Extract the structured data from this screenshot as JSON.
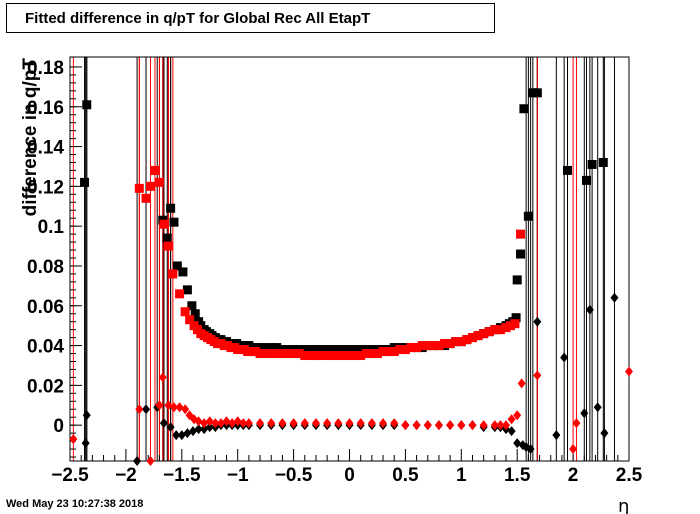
{
  "title": "Fitted difference in q/pT for Global Rec All EtapT",
  "timestamp": "Wed May 23 10:27:38 2018",
  "chart_data": {
    "type": "scatter",
    "title": "Fitted difference in q/pT for Global Rec All EtapT",
    "xlabel": "η",
    "ylabel": "difference in q/pT",
    "xlim": [
      -2.5,
      2.5
    ],
    "ylim": [
      -0.018,
      0.185
    ],
    "x_ticks": [
      "−2.5",
      "−2",
      "−1.5",
      "−1",
      "−0.5",
      "0",
      "0.5",
      "1",
      "1.5",
      "2",
      "2.5"
    ],
    "y_ticks": [
      "0",
      "0.02",
      "0.04",
      "0.06",
      "0.08",
      "0.1",
      "0.12",
      "0.14",
      "0.16",
      "0.18"
    ],
    "y_tick_values": [
      0,
      0.02,
      0.04,
      0.06,
      0.08,
      0.1,
      0.12,
      0.14,
      0.16,
      0.18
    ],
    "grid": false,
    "legend": "none",
    "series": [
      {
        "marker": "square",
        "color": "#000000",
        "x": [
          -2.37,
          -2.35,
          -1.67,
          -1.63,
          -1.6,
          -1.57,
          -1.54,
          -1.49,
          -1.45,
          -1.41,
          -1.38,
          -1.35,
          -1.33,
          -1.3,
          -1.28,
          -1.25,
          -1.23,
          -1.2,
          -1.17,
          -1.15,
          -1.12,
          -1.1,
          -1.07,
          -1.04,
          -1.01,
          -0.99,
          -0.96,
          -0.93,
          -0.9,
          -0.85,
          -0.8,
          -0.75,
          -0.7,
          -0.65,
          -0.6,
          -0.55,
          -0.5,
          -0.45,
          -0.4,
          -0.35,
          -0.3,
          -0.25,
          -0.2,
          -0.15,
          -0.1,
          -0.05,
          0,
          0.05,
          0.1,
          0.15,
          0.2,
          0.25,
          0.3,
          0.35,
          0.4,
          0.45,
          0.5,
          0.55,
          0.6,
          0.65,
          0.7,
          0.75,
          0.8,
          0.85,
          0.9,
          0.95,
          1.0,
          1.05,
          1.1,
          1.15,
          1.2,
          1.25,
          1.3,
          1.35,
          1.4,
          1.43,
          1.46,
          1.49,
          1.5,
          1.53,
          1.56,
          1.6,
          1.64,
          1.68,
          1.95,
          2.12,
          2.17,
          2.27
        ],
        "y": [
          0.122,
          0.161,
          0.103,
          0.094,
          0.109,
          0.102,
          0.08,
          0.077,
          0.068,
          0.06,
          0.056,
          0.052,
          0.05,
          0.048,
          0.047,
          0.046,
          0.045,
          0.044,
          0.043,
          0.043,
          0.042,
          0.042,
          0.041,
          0.041,
          0.041,
          0.04,
          0.04,
          0.04,
          0.04,
          0.039,
          0.039,
          0.039,
          0.039,
          0.039,
          0.038,
          0.038,
          0.038,
          0.038,
          0.038,
          0.038,
          0.038,
          0.038,
          0.038,
          0.038,
          0.038,
          0.038,
          0.038,
          0.038,
          0.038,
          0.038,
          0.038,
          0.038,
          0.038,
          0.038,
          0.039,
          0.039,
          0.039,
          0.039,
          0.039,
          0.039,
          0.04,
          0.04,
          0.04,
          0.04,
          0.041,
          0.042,
          0.042,
          0.043,
          0.044,
          0.045,
          0.046,
          0.047,
          0.048,
          0.049,
          0.05,
          0.051,
          0.052,
          0.054,
          0.073,
          0.086,
          0.159,
          0.105,
          0.167,
          0.167,
          0.128,
          0.123,
          0.131,
          0.132
        ]
      },
      {
        "marker": "square",
        "color": "#ff0000",
        "x": [
          -1.88,
          -1.82,
          -1.78,
          -1.74,
          -1.7,
          -1.66,
          -1.62,
          -1.58,
          -1.52,
          -1.47,
          -1.43,
          -1.39,
          -1.36,
          -1.33,
          -1.3,
          -1.27,
          -1.24,
          -1.21,
          -1.18,
          -1.15,
          -1.12,
          -1.09,
          -1.06,
          -1.03,
          -1.0,
          -0.97,
          -0.94,
          -0.91,
          -0.88,
          -0.84,
          -0.8,
          -0.75,
          -0.7,
          -0.65,
          -0.6,
          -0.55,
          -0.5,
          -0.45,
          -0.4,
          -0.35,
          -0.3,
          -0.25,
          -0.2,
          -0.15,
          -0.1,
          -0.05,
          0,
          0.05,
          0.1,
          0.15,
          0.2,
          0.25,
          0.3,
          0.35,
          0.4,
          0.45,
          0.5,
          0.55,
          0.6,
          0.65,
          0.7,
          0.75,
          0.8,
          0.85,
          0.9,
          0.95,
          1.0,
          1.05,
          1.1,
          1.15,
          1.2,
          1.25,
          1.3,
          1.35,
          1.4,
          1.44,
          1.48,
          1.53
        ],
        "y": [
          0.119,
          0.114,
          0.12,
          0.128,
          0.122,
          0.101,
          0.09,
          0.076,
          0.066,
          0.057,
          0.053,
          0.05,
          0.048,
          0.046,
          0.045,
          0.044,
          0.043,
          0.042,
          0.041,
          0.041,
          0.04,
          0.04,
          0.039,
          0.039,
          0.038,
          0.038,
          0.038,
          0.037,
          0.037,
          0.037,
          0.036,
          0.036,
          0.036,
          0.036,
          0.036,
          0.036,
          0.036,
          0.036,
          0.035,
          0.035,
          0.035,
          0.035,
          0.035,
          0.035,
          0.035,
          0.035,
          0.035,
          0.035,
          0.035,
          0.036,
          0.036,
          0.036,
          0.037,
          0.037,
          0.037,
          0.038,
          0.038,
          0.039,
          0.039,
          0.04,
          0.04,
          0.04,
          0.04,
          0.041,
          0.041,
          0.042,
          0.042,
          0.043,
          0.044,
          0.045,
          0.046,
          0.047,
          0.048,
          0.048,
          0.049,
          0.05,
          0.051,
          0.096
        ]
      },
      {
        "marker": "diamond",
        "color": "#000000",
        "x": [
          -2.36,
          -2.35,
          -1.9,
          -1.82,
          -1.72,
          -1.66,
          -1.6,
          -1.55,
          -1.5,
          -1.45,
          -1.4,
          -1.35,
          -1.3,
          -1.25,
          -1.2,
          -1.15,
          -1.1,
          -1.05,
          -1.0,
          -0.95,
          -0.9,
          -0.8,
          -0.7,
          -0.6,
          -0.5,
          -0.4,
          -0.3,
          -0.2,
          -0.1,
          0,
          0.1,
          0.2,
          0.3,
          0.4,
          0.5,
          0.6,
          0.7,
          0.8,
          0.9,
          1.0,
          1.1,
          1.2,
          1.3,
          1.35,
          1.4,
          1.45,
          1.5,
          1.55,
          1.58,
          1.62,
          1.68,
          1.85,
          1.92,
          2.1,
          2.15,
          2.22,
          2.28,
          2.37
        ],
        "y": [
          -0.009,
          0.005,
          -0.018,
          0.008,
          0.009,
          0.001,
          -0.001,
          -0.005,
          -0.005,
          -0.004,
          -0.003,
          -0.002,
          -0.002,
          -0.001,
          -0.001,
          0.0,
          0.0,
          0.0,
          0.0,
          0.0,
          0.0,
          0.0,
          0.0,
          0.0,
          0.0,
          0.0,
          0.0,
          0.0,
          0.0,
          0.0,
          0.0,
          0.0,
          0.0,
          0.0,
          0.0,
          0.0,
          0.0,
          0.0,
          0.0,
          0.0,
          0.0,
          -0.001,
          -0.001,
          -0.001,
          -0.002,
          -0.003,
          -0.009,
          -0.01,
          -0.011,
          -0.012,
          0.052,
          -0.005,
          0.034,
          0.006,
          0.058,
          0.009,
          -0.004,
          0.064
        ]
      },
      {
        "marker": "diamond",
        "color": "#ff0000",
        "x": [
          -2.47,
          -1.88,
          -1.78,
          -1.7,
          -1.67,
          -1.62,
          -1.57,
          -1.52,
          -1.47,
          -1.43,
          -1.39,
          -1.35,
          -1.3,
          -1.25,
          -1.2,
          -1.15,
          -1.1,
          -1.05,
          -1.0,
          -0.95,
          -0.9,
          -0.8,
          -0.7,
          -0.6,
          -0.5,
          -0.4,
          -0.3,
          -0.2,
          -0.1,
          0,
          0.1,
          0.2,
          0.3,
          0.4,
          0.5,
          0.6,
          0.7,
          0.8,
          0.9,
          1.0,
          1.1,
          1.2,
          1.3,
          1.35,
          1.4,
          1.45,
          1.5,
          1.54,
          1.68,
          2.0,
          2.03,
          2.5
        ],
        "y": [
          -0.007,
          0.008,
          -0.018,
          0.01,
          0.024,
          0.01,
          0.009,
          0.009,
          0.008,
          0.005,
          0.003,
          0.002,
          0.001,
          0.002,
          0.001,
          0.001,
          0.002,
          0.001,
          0.002,
          0.001,
          0.001,
          0.001,
          0.001,
          0.001,
          0.001,
          0.001,
          0.001,
          0.001,
          0.001,
          0.001,
          0.001,
          0.001,
          0.001,
          0.001,
          0.0,
          0.0,
          0.0,
          0.0,
          0.0,
          0.0,
          0.0,
          0.0,
          0.0,
          0.0,
          0.0,
          0.003,
          0.005,
          0.021,
          0.025,
          -0.012,
          0.001,
          0.027
        ]
      }
    ]
  }
}
